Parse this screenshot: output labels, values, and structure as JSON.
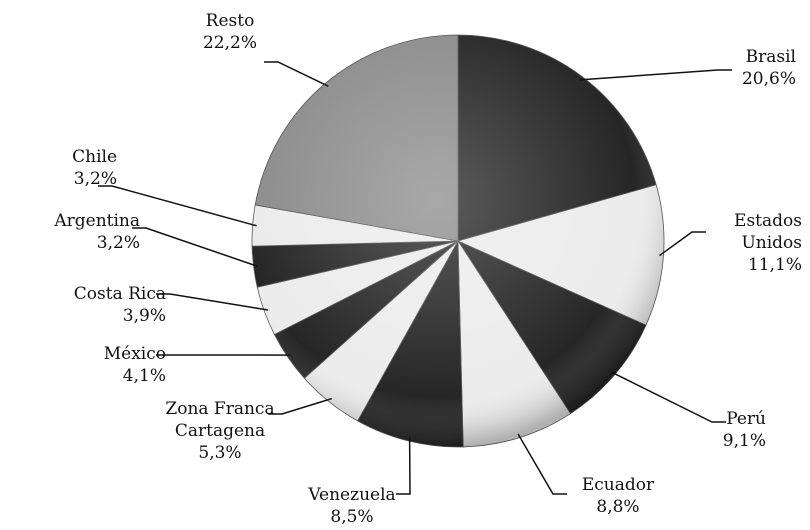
{
  "chart_data": {
    "type": "pie",
    "categories": [
      "Brasil",
      "Estados\nUnidos",
      "Perú",
      "Ecuador",
      "Venezuela",
      "Zona Franca\nCartagena",
      "México",
      "Costa Rica",
      "Argentina",
      "Chile",
      "Resto"
    ],
    "values": [
      20.6,
      11.1,
      9.1,
      8.8,
      8.5,
      5.3,
      4.1,
      3.9,
      3.2,
      3.2,
      22.2
    ],
    "value_labels": [
      "20,6%",
      "11,1%",
      "9,1%",
      "8,8%",
      "8,5%",
      "5,3%",
      "4,1%",
      "3,9%",
      "3,2%",
      "3,2%",
      "22,2%"
    ],
    "colors": [
      "#262626",
      "#ececec",
      "#262626",
      "#ececec",
      "#262626",
      "#ececec",
      "#262626",
      "#ececec",
      "#262626",
      "#ececec",
      "#8c8c8c"
    ]
  }
}
